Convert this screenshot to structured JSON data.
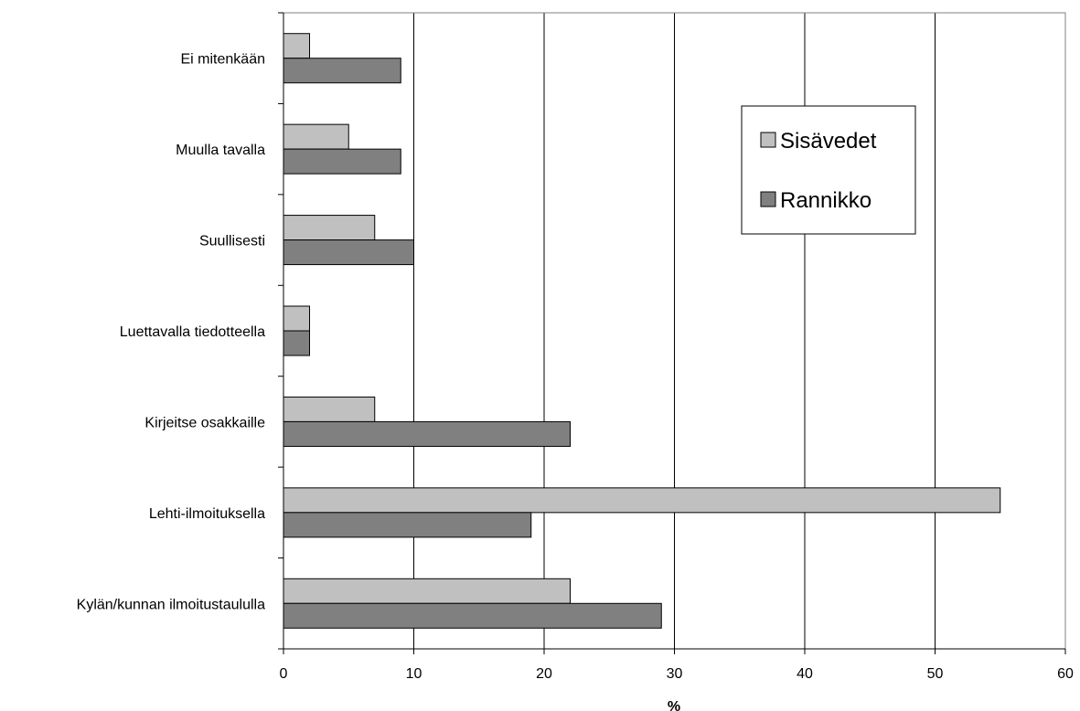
{
  "chart_data": {
    "type": "bar",
    "orientation": "horizontal",
    "categories": [
      "Ei mitenkään",
      "Muulla tavalla",
      "Suullisesti",
      "Luettavalla tiedotteella",
      "Kirjeitse osakkaille",
      "Lehti-ilmoituksella",
      "Kylän/kunnan ilmoitustaululla"
    ],
    "series": [
      {
        "name": "Sisävedet",
        "color": "#c0c0c0",
        "values": [
          2,
          5,
          7,
          2,
          7,
          55,
          22
        ]
      },
      {
        "name": "Rannikko",
        "color": "#808080",
        "values": [
          9,
          9,
          10,
          2,
          22,
          19,
          29
        ]
      }
    ],
    "xlabel": "%",
    "xlim": [
      0,
      60
    ],
    "xticks": [
      "0",
      "10",
      "20",
      "30",
      "40",
      "50",
      "60"
    ],
    "grid": "vertical",
    "legend_position": "top-right"
  }
}
